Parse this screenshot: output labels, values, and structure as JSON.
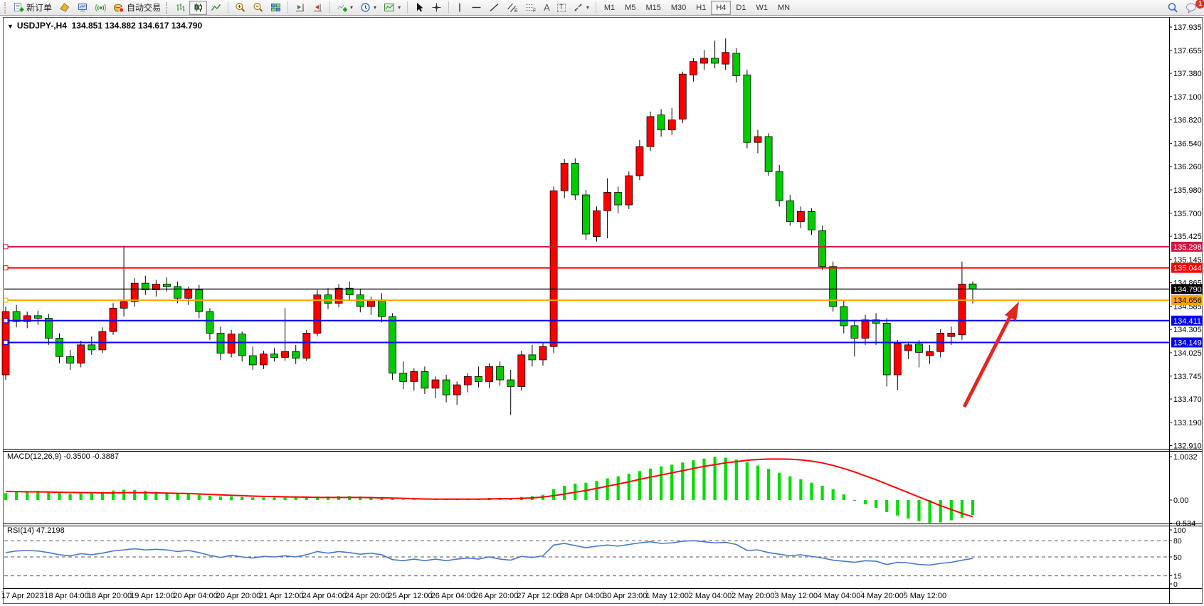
{
  "toolbar": {
    "new_order_label": "新订单",
    "autotrading_label": "自动交易",
    "timeframes": [
      "M1",
      "M5",
      "M15",
      "M30",
      "H1",
      "H4",
      "D1",
      "W1",
      "MN"
    ],
    "active_timeframe": "H4",
    "notification_badge": "1"
  },
  "chart_header": {
    "dropdown_glyph": "▼",
    "symbol_period": "USDJPY-,H4",
    "ohlc_text": "134.851 134.882 134.617 134.790"
  },
  "indicator_labels": {
    "macd": "MACD(12,26,9) -0.3500 -0.3887",
    "rsi": "RSI(14) 47.2198"
  },
  "chart_data": {
    "type": "candlestick",
    "title": "USDJPY-,H4",
    "bull_color": "#ff0000",
    "bear_color": "#00cc00",
    "price_axis_ticks": [
      "137.935",
      "137.655",
      "137.380",
      "137.100",
      "136.820",
      "136.540",
      "136.260",
      "135.980",
      "135.700",
      "135.425",
      "135.145",
      "134.865",
      "134.585",
      "134.305",
      "134.025",
      "133.745",
      "133.470",
      "133.190",
      "132.910"
    ],
    "time_axis_labels": [
      "17 Apr 2023",
      "18 Apr 04:00",
      "18 Apr 20:00",
      "19 Apr 12:00",
      "20 Apr 04:00",
      "20 Apr 20:00",
      "21 Apr 12:00",
      "24 Apr 04:00",
      "24 Apr 20:00",
      "25 Apr 12:00",
      "26 Apr 04:00",
      "26 Apr 20:00",
      "27 Apr 12:00",
      "28 Apr 04:00",
      "30 Apr 23:00",
      "1 May 12:00",
      "2 May 04:00",
      "2 May 20:00",
      "3 May 12:00",
      "4 May 04:00",
      "4 May 20:00",
      "5 May 12:00"
    ],
    "candles": [
      [
        133.76,
        134.58,
        133.7,
        134.52
      ],
      [
        134.52,
        134.6,
        134.33,
        134.4
      ],
      [
        134.4,
        134.52,
        134.32,
        134.47
      ],
      [
        134.47,
        134.53,
        134.36,
        134.44
      ],
      [
        134.44,
        134.49,
        134.12,
        134.2
      ],
      [
        134.2,
        134.26,
        133.9,
        133.98
      ],
      [
        133.98,
        134.06,
        133.82,
        133.9
      ],
      [
        133.9,
        134.17,
        133.85,
        134.12
      ],
      [
        134.12,
        134.22,
        134.0,
        134.06
      ],
      [
        134.06,
        134.33,
        134.02,
        134.28
      ],
      [
        134.28,
        134.62,
        134.24,
        134.56
      ],
      [
        134.56,
        135.31,
        134.46,
        134.64
      ],
      [
        134.64,
        134.92,
        134.58,
        134.86
      ],
      [
        134.86,
        134.95,
        134.72,
        134.78
      ],
      [
        134.78,
        134.9,
        134.7,
        134.85
      ],
      [
        134.85,
        134.93,
        134.76,
        134.82
      ],
      [
        134.82,
        134.88,
        134.62,
        134.68
      ],
      [
        134.68,
        134.82,
        134.6,
        134.78
      ],
      [
        134.78,
        134.84,
        134.44,
        134.52
      ],
      [
        134.52,
        134.56,
        134.18,
        134.26
      ],
      [
        134.26,
        134.34,
        133.94,
        134.02
      ],
      [
        134.02,
        134.3,
        133.97,
        134.25
      ],
      [
        134.25,
        134.28,
        133.92,
        133.99
      ],
      [
        133.99,
        134.1,
        133.82,
        133.88
      ],
      [
        133.88,
        134.05,
        133.83,
        134.01
      ],
      [
        134.01,
        134.08,
        133.92,
        133.97
      ],
      [
        133.97,
        134.56,
        133.93,
        134.04
      ],
      [
        134.04,
        134.12,
        133.89,
        133.96
      ],
      [
        133.96,
        134.3,
        133.93,
        134.26
      ],
      [
        134.26,
        134.78,
        134.22,
        134.72
      ],
      [
        134.72,
        134.8,
        134.55,
        134.62
      ],
      [
        134.62,
        134.85,
        134.57,
        134.8
      ],
      [
        134.8,
        134.88,
        134.65,
        134.72
      ],
      [
        134.72,
        134.79,
        134.51,
        134.58
      ],
      [
        134.58,
        134.7,
        134.48,
        134.66
      ],
      [
        134.66,
        134.74,
        134.39,
        134.46
      ],
      [
        134.46,
        134.5,
        133.7,
        133.78
      ],
      [
        133.78,
        133.92,
        133.59,
        133.68
      ],
      [
        133.68,
        133.84,
        133.57,
        133.8
      ],
      [
        133.8,
        133.86,
        133.53,
        133.6
      ],
      [
        133.6,
        133.74,
        133.48,
        133.7
      ],
      [
        133.7,
        133.76,
        133.43,
        133.52
      ],
      [
        133.52,
        133.68,
        133.4,
        133.64
      ],
      [
        133.64,
        133.78,
        133.55,
        133.74
      ],
      [
        133.74,
        133.86,
        133.61,
        133.68
      ],
      [
        133.68,
        133.9,
        133.6,
        133.86
      ],
      [
        133.86,
        133.92,
        133.63,
        133.7
      ],
      [
        133.7,
        133.82,
        133.28,
        133.62
      ],
      [
        133.62,
        134.05,
        133.57,
        134.0
      ],
      [
        134.0,
        134.12,
        133.86,
        133.94
      ],
      [
        133.94,
        134.15,
        133.87,
        134.1
      ],
      [
        134.1,
        136.02,
        134.02,
        135.97
      ],
      [
        135.97,
        136.35,
        135.88,
        136.3
      ],
      [
        136.3,
        136.36,
        135.86,
        135.92
      ],
      [
        135.92,
        135.98,
        135.38,
        135.45
      ],
      [
        135.42,
        135.78,
        135.36,
        135.73
      ],
      [
        135.73,
        136.12,
        135.4,
        135.95
      ],
      [
        135.95,
        136.02,
        135.7,
        135.8
      ],
      [
        135.8,
        136.2,
        135.75,
        136.15
      ],
      [
        136.15,
        136.58,
        136.1,
        136.5
      ],
      [
        136.5,
        136.92,
        136.45,
        136.86
      ],
      [
        136.88,
        136.95,
        136.62,
        136.7
      ],
      [
        136.7,
        136.96,
        136.64,
        136.82
      ],
      [
        136.83,
        137.4,
        136.78,
        137.37
      ],
      [
        137.36,
        137.56,
        137.28,
        137.52
      ],
      [
        137.5,
        137.66,
        137.42,
        137.56
      ],
      [
        137.56,
        137.77,
        137.44,
        137.5
      ],
      [
        137.49,
        137.8,
        137.42,
        137.63
      ],
      [
        137.62,
        137.68,
        137.27,
        137.35
      ],
      [
        137.36,
        137.42,
        136.48,
        136.55
      ],
      [
        136.55,
        136.7,
        136.42,
        136.62
      ],
      [
        136.62,
        136.66,
        136.15,
        136.2
      ],
      [
        136.2,
        136.28,
        135.78,
        135.85
      ],
      [
        135.85,
        135.92,
        135.55,
        135.6
      ],
      [
        135.6,
        135.78,
        135.52,
        135.72
      ],
      [
        135.72,
        135.76,
        135.44,
        135.5
      ],
      [
        135.49,
        135.55,
        135.02,
        135.06
      ],
      [
        135.06,
        135.12,
        134.52,
        134.58
      ],
      [
        134.58,
        134.66,
        134.26,
        134.35
      ],
      [
        134.35,
        134.42,
        133.98,
        134.2
      ],
      [
        134.2,
        134.48,
        134.12,
        134.42
      ],
      [
        134.42,
        134.5,
        134.12,
        134.38
      ],
      [
        134.38,
        134.44,
        133.62,
        133.76
      ],
      [
        133.76,
        134.18,
        133.58,
        134.14
      ],
      [
        134.05,
        134.16,
        133.95,
        134.12
      ],
      [
        134.13,
        134.18,
        133.85,
        134.03
      ],
      [
        133.99,
        134.12,
        133.89,
        134.04
      ],
      [
        134.04,
        134.31,
        133.97,
        134.26
      ],
      [
        134.22,
        134.34,
        134.12,
        134.26
      ],
      [
        134.24,
        135.12,
        134.18,
        134.85
      ],
      [
        134.851,
        134.882,
        134.617,
        134.79
      ]
    ],
    "horizontal_lines": [
      {
        "price": 135.298,
        "label": "135.298",
        "color": "#d01745",
        "text": "#ffffff",
        "type": "resistance"
      },
      {
        "price": 135.044,
        "label": "135.044",
        "color": "#ff0000",
        "text": "#ffffff",
        "type": "resistance"
      },
      {
        "price": 134.79,
        "label": "134.790",
        "color": "#000000",
        "text": "#ffffff",
        "type": "current_price"
      },
      {
        "price": 134.656,
        "label": "134.656",
        "color": "#ffa500",
        "text": "#000000",
        "type": "level"
      },
      {
        "price": 134.411,
        "label": "134.411",
        "color": "#0000ee",
        "text": "#ffffff",
        "type": "support"
      },
      {
        "price": 134.149,
        "label": "134.149",
        "color": "#0000ee",
        "text": "#ffffff",
        "type": "support"
      }
    ],
    "macd": {
      "params": "12,26,9",
      "current_macd": -0.35,
      "current_signal": -0.3887,
      "axis_labels": [
        "1.0032",
        "0.00",
        "-0.534"
      ],
      "hist_color": "#00dd00",
      "signal_color": "#ff0000",
      "histogram": [
        0.16,
        0.18,
        0.2,
        0.21,
        0.19,
        0.17,
        0.14,
        0.15,
        0.17,
        0.19,
        0.22,
        0.24,
        0.23,
        0.21,
        0.19,
        0.17,
        0.15,
        0.14,
        0.12,
        0.1,
        0.08,
        0.08,
        0.07,
        0.06,
        0.06,
        0.06,
        0.07,
        0.06,
        0.06,
        0.08,
        0.08,
        0.09,
        0.09,
        0.08,
        0.07,
        0.06,
        0.03,
        0.01,
        0.01,
        0.0,
        0.01,
        0.01,
        0.02,
        0.03,
        0.03,
        0.05,
        0.05,
        0.04,
        0.07,
        0.09,
        0.12,
        0.25,
        0.33,
        0.38,
        0.4,
        0.44,
        0.5,
        0.55,
        0.61,
        0.67,
        0.73,
        0.78,
        0.82,
        0.87,
        0.92,
        0.96,
        1.0,
        0.98,
        0.94,
        0.88,
        0.8,
        0.72,
        0.63,
        0.55,
        0.48,
        0.4,
        0.33,
        0.25,
        0.13,
        -0.02,
        -0.1,
        -0.18,
        -0.28,
        -0.36,
        -0.43,
        -0.49,
        -0.53,
        -0.52,
        -0.47,
        -0.41,
        -0.35
      ],
      "signal": [
        0.2,
        0.195,
        0.19,
        0.19,
        0.185,
        0.18,
        0.175,
        0.17,
        0.17,
        0.165,
        0.165,
        0.17,
        0.17,
        0.17,
        0.165,
        0.16,
        0.155,
        0.15,
        0.14,
        0.13,
        0.12,
        0.11,
        0.1,
        0.09,
        0.085,
        0.08,
        0.075,
        0.07,
        0.065,
        0.06,
        0.06,
        0.06,
        0.06,
        0.06,
        0.055,
        0.05,
        0.045,
        0.04,
        0.03,
        0.025,
        0.02,
        0.02,
        0.02,
        0.02,
        0.02,
        0.025,
        0.03,
        0.03,
        0.04,
        0.05,
        0.07,
        0.1,
        0.14,
        0.18,
        0.22,
        0.27,
        0.32,
        0.37,
        0.42,
        0.48,
        0.53,
        0.58,
        0.63,
        0.68,
        0.73,
        0.78,
        0.82,
        0.86,
        0.89,
        0.92,
        0.94,
        0.95,
        0.95,
        0.945,
        0.93,
        0.9,
        0.86,
        0.8,
        0.73,
        0.65,
        0.56,
        0.47,
        0.37,
        0.27,
        0.17,
        0.07,
        -0.03,
        -0.13,
        -0.22,
        -0.31,
        -0.3887
      ]
    },
    "rsi": {
      "period": 14,
      "current_value": 47.2198,
      "levels": [
        100,
        80,
        50,
        15,
        0
      ],
      "dashed_levels": [
        80,
        50,
        15
      ],
      "line_color": "#4878c8",
      "values": [
        58,
        61,
        62,
        61,
        58,
        54,
        52,
        56,
        54,
        57,
        61,
        63,
        65,
        63,
        64,
        63,
        60,
        62,
        58,
        53,
        49,
        53,
        50,
        48,
        51,
        50,
        52,
        50,
        54,
        60,
        57,
        60,
        58,
        55,
        57,
        54,
        45,
        43,
        46,
        43,
        46,
        43,
        46,
        48,
        46,
        50,
        46,
        44,
        51,
        49,
        52,
        72,
        75,
        71,
        67,
        70,
        72,
        70,
        73,
        76,
        78,
        75,
        76,
        79,
        80,
        78,
        76,
        77,
        73,
        62,
        63,
        58,
        55,
        52,
        54,
        51,
        48,
        44,
        42,
        40,
        43,
        42,
        36,
        40,
        39,
        36,
        35,
        38,
        40,
        44,
        47.2
      ]
    },
    "annotation_arrow": {
      "color": "#e0281e",
      "points_at_price": 134.656,
      "direction": "up-right"
    }
  }
}
